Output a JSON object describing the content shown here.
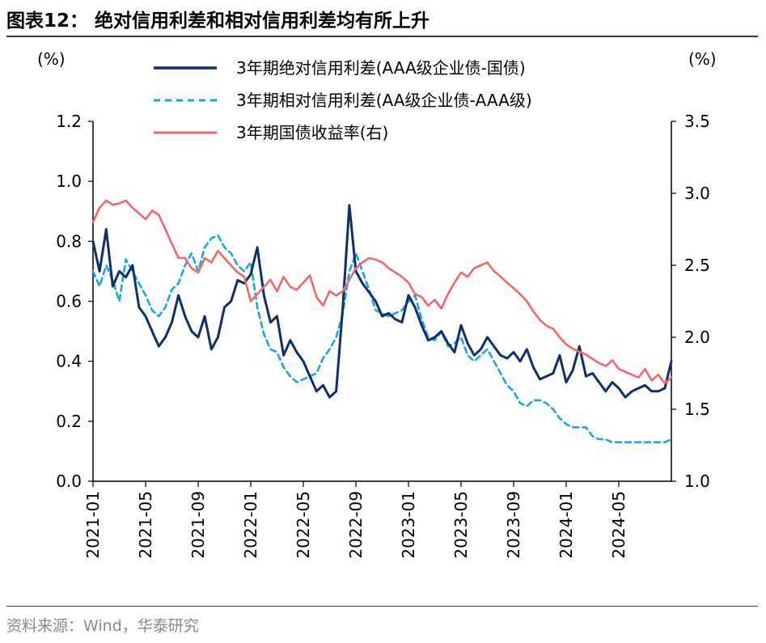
{
  "header": {
    "title": "图表12：  绝对信用利差和相对信用利差均有所上升"
  },
  "footer": {
    "source": "资料来源：Wind，华泰研究"
  },
  "colors": {
    "absolute": "#0d2f6b",
    "relative": "#1aa6e0",
    "yield": "#f0686a",
    "rule": "#1f3864"
  },
  "chart_data": {
    "type": "line",
    "left_axis": {
      "unit_label": "(%)",
      "ylim": [
        0,
        1.2
      ],
      "ticks": [
        "0.0",
        "0.2",
        "0.4",
        "0.6",
        "0.8",
        "1.0",
        "1.2"
      ]
    },
    "right_axis": {
      "unit_label": "(%)",
      "ylim": [
        1.0,
        3.5
      ],
      "ticks": [
        "1.0",
        "1.5",
        "2.0",
        "2.5",
        "3.0",
        "3.5"
      ]
    },
    "x_range": [
      0,
      44
    ],
    "x_ticks": [
      "2021-01",
      "2021-05",
      "2021-09",
      "2022-01",
      "2022-05",
      "2022-09",
      "2023-01",
      "2023-05",
      "2023-09",
      "2024-01",
      "2024-05"
    ],
    "legend": {
      "absolute": "3年期绝对信用利差(AAA级企业债-国债)",
      "relative": "3年期相对信用利差(AA级企业债-AAA级)",
      "yield": "3年期国债收益率(右)"
    },
    "series": [
      {
        "key": "absolute",
        "name": "3年期绝对信用利差(AAA级企业债-国债)",
        "axis": "left",
        "style": "solid",
        "x": [
          0,
          0.5,
          1,
          1.5,
          2,
          2.5,
          3,
          3.5,
          4,
          4.5,
          5,
          5.5,
          6,
          6.5,
          7,
          7.5,
          8,
          8.5,
          9,
          9.5,
          10,
          10.5,
          11,
          11.5,
          12,
          12.5,
          13,
          13.5,
          14,
          14.5,
          15,
          15.5,
          16,
          16.5,
          17,
          17.5,
          18,
          18.5,
          19,
          19.5,
          20,
          20.5,
          21,
          21.5,
          22,
          22.5,
          23,
          23.5,
          24,
          24.5,
          25,
          25.5,
          26,
          26.5,
          27,
          27.5,
          28,
          28.5,
          29,
          29.5,
          30,
          30.5,
          31,
          31.5,
          32,
          32.5,
          33,
          33.5,
          34,
          34.5,
          35,
          35.5,
          36,
          36.5,
          37,
          37.5,
          38,
          38.5,
          39,
          39.5,
          40,
          40.5,
          41,
          41.5,
          42,
          42.5,
          43,
          43.5,
          44
        ],
        "values": [
          0.8,
          0.7,
          0.84,
          0.65,
          0.7,
          0.68,
          0.72,
          0.58,
          0.55,
          0.5,
          0.45,
          0.48,
          0.53,
          0.62,
          0.55,
          0.5,
          0.48,
          0.55,
          0.44,
          0.48,
          0.58,
          0.6,
          0.67,
          0.66,
          0.69,
          0.78,
          0.62,
          0.53,
          0.55,
          0.42,
          0.47,
          0.43,
          0.4,
          0.35,
          0.3,
          0.32,
          0.28,
          0.3,
          0.58,
          0.92,
          0.7,
          0.66,
          0.63,
          0.6,
          0.55,
          0.56,
          0.54,
          0.53,
          0.62,
          0.58,
          0.52,
          0.47,
          0.48,
          0.5,
          0.46,
          0.43,
          0.52,
          0.46,
          0.42,
          0.44,
          0.48,
          0.45,
          0.42,
          0.41,
          0.43,
          0.4,
          0.44,
          0.38,
          0.34,
          0.35,
          0.36,
          0.42,
          0.33,
          0.37,
          0.45,
          0.35,
          0.36,
          0.33,
          0.3,
          0.33,
          0.31,
          0.28,
          0.3,
          0.31,
          0.32,
          0.3,
          0.3,
          0.31,
          0.4
        ]
      },
      {
        "key": "relative",
        "name": "3年期相对信用利差(AA级企业债-AAA级)",
        "axis": "left",
        "style": "dashed",
        "x": [
          0,
          0.5,
          1,
          1.5,
          2,
          2.5,
          3,
          3.5,
          4,
          4.5,
          5,
          5.5,
          6,
          6.5,
          7,
          7.5,
          8,
          8.5,
          9,
          9.5,
          10,
          10.5,
          11,
          11.5,
          12,
          12.5,
          13,
          13.5,
          14,
          14.5,
          15,
          15.5,
          16,
          16.5,
          17,
          17.5,
          18,
          18.5,
          19,
          19.5,
          20,
          20.5,
          21,
          21.5,
          22,
          22.5,
          23,
          23.5,
          24,
          24.5,
          25,
          25.5,
          26,
          26.5,
          27,
          27.5,
          28,
          28.5,
          29,
          29.5,
          30,
          30.5,
          31,
          31.5,
          32,
          32.5,
          33,
          33.5,
          34,
          34.5,
          35,
          35.5,
          36,
          36.5,
          37,
          37.5,
          38,
          38.5,
          39,
          39.5,
          40,
          40.5,
          41,
          41.5,
          42,
          42.5,
          43,
          43.5,
          44
        ],
        "values": [
          0.7,
          0.65,
          0.72,
          0.67,
          0.6,
          0.74,
          0.7,
          0.66,
          0.62,
          0.57,
          0.55,
          0.58,
          0.64,
          0.66,
          0.72,
          0.76,
          0.7,
          0.78,
          0.81,
          0.82,
          0.78,
          0.76,
          0.72,
          0.7,
          0.73,
          0.58,
          0.49,
          0.44,
          0.43,
          0.38,
          0.35,
          0.33,
          0.34,
          0.35,
          0.36,
          0.41,
          0.44,
          0.48,
          0.56,
          0.7,
          0.76,
          0.7,
          0.64,
          0.57,
          0.56,
          0.55,
          0.56,
          0.57,
          0.6,
          0.62,
          0.54,
          0.48,
          0.47,
          0.5,
          0.45,
          0.46,
          0.48,
          0.42,
          0.4,
          0.42,
          0.44,
          0.4,
          0.36,
          0.32,
          0.3,
          0.26,
          0.25,
          0.27,
          0.27,
          0.26,
          0.24,
          0.21,
          0.19,
          0.18,
          0.18,
          0.18,
          0.15,
          0.14,
          0.14,
          0.13,
          0.13,
          0.13,
          0.13,
          0.13,
          0.13,
          0.13,
          0.13,
          0.13,
          0.14
        ]
      },
      {
        "key": "yield",
        "name": "3年期国债收益率(右)",
        "axis": "right",
        "style": "solid",
        "x": [
          0,
          0.5,
          1,
          1.5,
          2,
          2.5,
          3,
          3.5,
          4,
          4.5,
          5,
          5.5,
          6,
          6.5,
          7,
          7.5,
          8,
          8.5,
          9,
          9.5,
          10,
          10.5,
          11,
          11.5,
          12,
          12.5,
          13,
          13.5,
          14,
          14.5,
          15,
          15.5,
          16,
          16.5,
          17,
          17.5,
          18,
          18.5,
          19,
          19.5,
          20,
          20.5,
          21,
          21.5,
          22,
          22.5,
          23,
          23.5,
          24,
          24.5,
          25,
          25.5,
          26,
          26.5,
          27,
          27.5,
          28,
          28.5,
          29,
          29.5,
          30,
          30.5,
          31,
          31.5,
          32,
          32.5,
          33,
          33.5,
          34,
          34.5,
          35,
          35.5,
          36,
          36.5,
          37,
          37.5,
          38,
          38.5,
          39,
          39.5,
          40,
          40.5,
          41,
          41.5,
          42,
          42.5,
          43,
          43.5,
          44
        ],
        "values": [
          2.8,
          2.9,
          2.95,
          2.92,
          2.93,
          2.95,
          2.9,
          2.86,
          2.82,
          2.88,
          2.85,
          2.75,
          2.65,
          2.55,
          2.55,
          2.48,
          2.45,
          2.55,
          2.52,
          2.6,
          2.55,
          2.5,
          2.45,
          2.42,
          2.25,
          2.3,
          2.35,
          2.4,
          2.32,
          2.42,
          2.35,
          2.33,
          2.38,
          2.43,
          2.28,
          2.22,
          2.32,
          2.29,
          2.32,
          2.4,
          2.48,
          2.52,
          2.55,
          2.54,
          2.52,
          2.48,
          2.45,
          2.42,
          2.38,
          2.3,
          2.28,
          2.22,
          2.26,
          2.2,
          2.3,
          2.38,
          2.45,
          2.42,
          2.48,
          2.5,
          2.52,
          2.46,
          2.42,
          2.38,
          2.34,
          2.3,
          2.25,
          2.18,
          2.12,
          2.08,
          2.06,
          2.0,
          1.95,
          1.92,
          1.9,
          1.88,
          1.85,
          1.82,
          1.8,
          1.84,
          1.78,
          1.76,
          1.74,
          1.72,
          1.78,
          1.7,
          1.74,
          1.68,
          1.72
        ]
      }
    ]
  }
}
